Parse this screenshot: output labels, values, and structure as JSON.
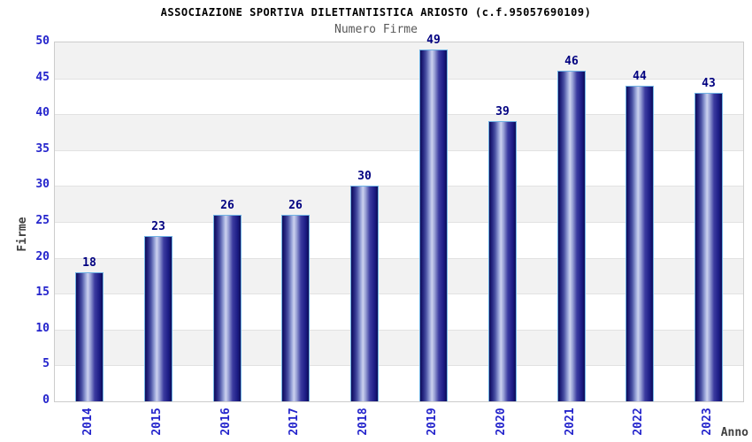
{
  "header": {
    "title": "ASSOCIAZIONE SPORTIVA DILETTANTISTICA ARIOSTO (c.f.95057690109)",
    "subtitle": "Numero Firme"
  },
  "chart_data": {
    "type": "bar",
    "title": "Numero Firme",
    "categories": [
      "2014",
      "2015",
      "2016",
      "2017",
      "2018",
      "2019",
      "2020",
      "2021",
      "2022",
      "2023"
    ],
    "values": [
      18,
      23,
      26,
      26,
      30,
      49,
      39,
      46,
      44,
      43
    ],
    "xlabel": "Anno",
    "ylabel": "Firme",
    "ylim": [
      0,
      50
    ],
    "ytick_step": 5,
    "yticks": [
      0,
      5,
      10,
      15,
      20,
      25,
      30,
      35,
      40,
      45,
      50
    ],
    "grid": "horizontal-stripes",
    "legend_position": "none",
    "data_labels": "above-bars"
  },
  "colors": {
    "title": "#000000",
    "subtitle": "#585858",
    "tick_label": "#2424cc",
    "value_label": "#000080",
    "axis_title": "#404040",
    "plot_border": "#cccccc",
    "stripe_gray": "#f2f2f2",
    "stripe_white": "#ffffff",
    "gridline": "#e2e2e2",
    "bar_border": "#6fb2e4",
    "bar_dark": "#0d0d58",
    "bar_mid": "#3c3ca0",
    "bar_light": "#ccd2ee"
  }
}
